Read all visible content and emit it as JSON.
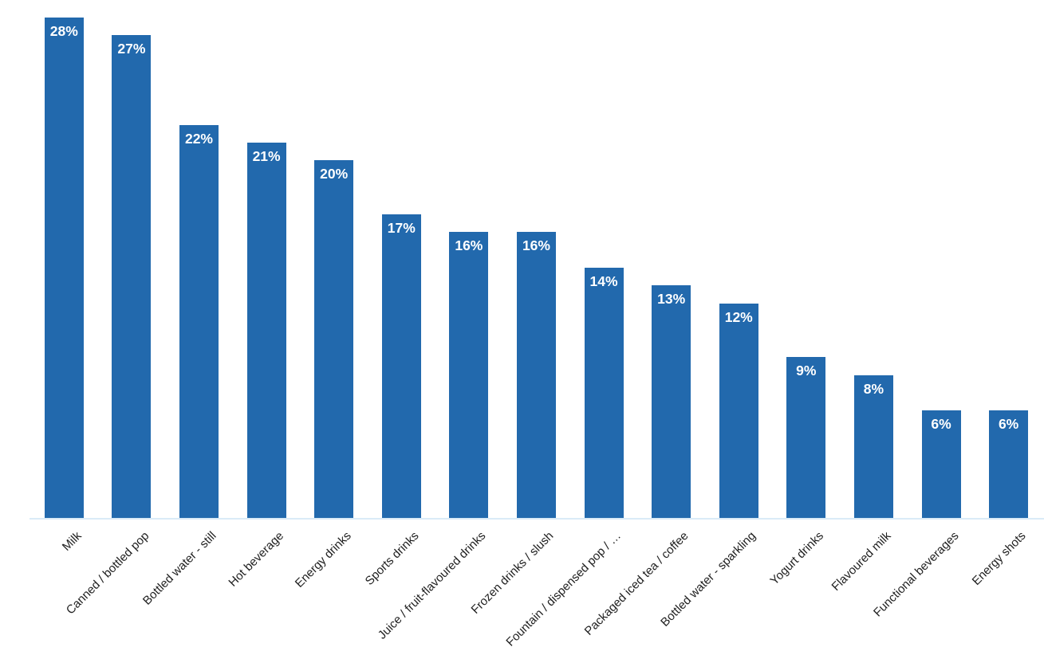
{
  "chart_data": {
    "type": "bar",
    "title": "",
    "xlabel": "",
    "ylabel": "",
    "categories": [
      "Milk",
      "Canned / bottled pop",
      "Bottled water - still",
      "Hot beverage",
      "Energy drinks",
      "Sports drinks",
      "Juice / fruit-flavoured drinks",
      "Frozen drinks / slush",
      "Fountain / dispensed pop / …",
      "Packaged iced tea / coffee",
      "Bottled water - sparkling",
      "Yogurt drinks",
      "Flavoured milk",
      "Functional beverages",
      "Energy shots"
    ],
    "values": [
      28,
      27,
      22,
      21,
      20,
      17,
      16,
      16,
      14,
      13,
      12,
      9,
      8,
      6,
      6
    ],
    "value_labels": [
      "28%",
      "27%",
      "22%",
      "21%",
      "20%",
      "17%",
      "16%",
      "16%",
      "14%",
      "13%",
      "12%",
      "9%",
      "8%",
      "6%",
      "6%"
    ],
    "ylim": [
      0,
      29
    ],
    "grid": false,
    "legend": null,
    "category_label_rotation_deg": -45,
    "bar_color": "#2269AD",
    "value_label_color": "#FFFFFF",
    "axis_line_color": "#DAEBF7",
    "category_label_color": "#1F1F1F",
    "background_color": "#FFFFFF"
  }
}
